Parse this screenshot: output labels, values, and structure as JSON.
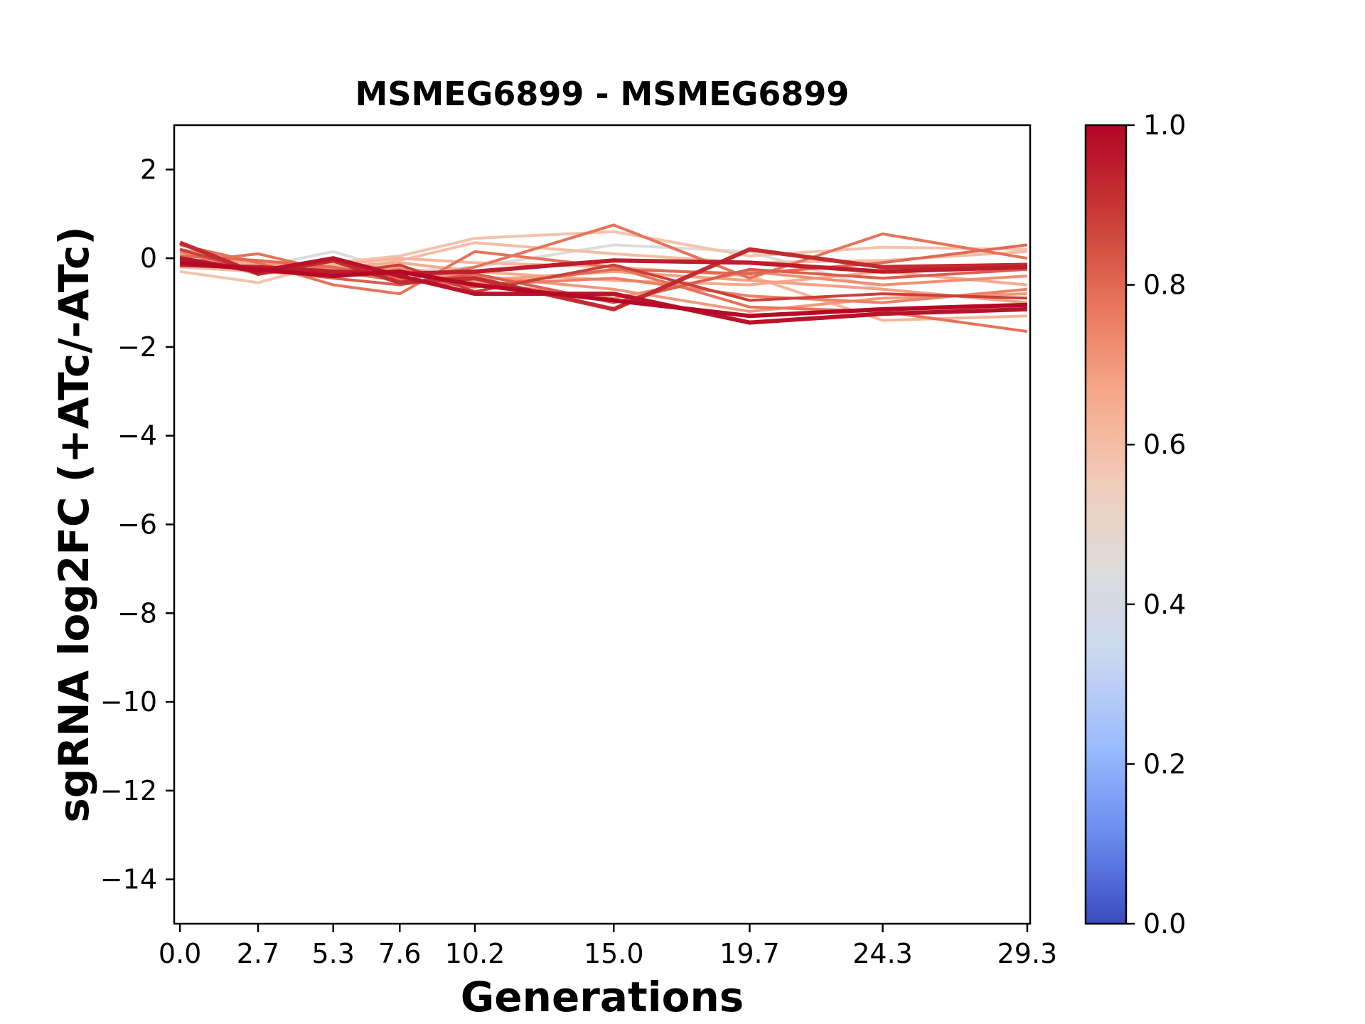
{
  "chart_data": {
    "type": "line",
    "title": "MSMEG6899 - MSMEG6899",
    "xlabel": "Generations",
    "ylabel": "sgRNA log2FC (+ATc/-ATc)",
    "x": [
      0.0,
      2.7,
      5.3,
      7.6,
      10.2,
      15.0,
      19.7,
      24.3,
      29.3
    ],
    "x_tick_labels": [
      "0.0",
      "2.7",
      "5.3",
      "7.6",
      "10.2",
      "15.0",
      "19.7",
      "24.3",
      "29.3"
    ],
    "xlim": [
      -0.2,
      29.4
    ],
    "ylim": [
      -15,
      3
    ],
    "y_ticks": [
      2,
      0,
      -2,
      -4,
      -6,
      -8,
      -10,
      -12,
      -14
    ],
    "y_tick_labels": [
      "2",
      "0",
      "−2",
      "−4",
      "−6",
      "−8",
      "−10",
      "−12",
      "−14"
    ],
    "grid": false,
    "colorbar": {
      "colormap": "coolwarm",
      "range": [
        0.0,
        1.0
      ],
      "ticks": [
        0.0,
        0.2,
        0.4,
        0.6,
        0.8,
        1.0
      ],
      "tick_labels": [
        "0.0",
        "0.2",
        "0.4",
        "0.6",
        "0.8",
        "1.0"
      ],
      "stops": [
        "#3b4cc0",
        "#6a8bef",
        "#9bbcff",
        "#c9d7f0",
        "#dddcdc",
        "#f2cbb7",
        "#f7a789",
        "#e7745b",
        "#c83b35",
        "#b40426"
      ]
    },
    "series": [
      {
        "color_value": 0.45,
        "values": [
          -0.1,
          -0.2,
          0.15,
          -0.3,
          -0.2,
          0.3,
          0.15,
          -0.7,
          -1.0
        ]
      },
      {
        "color_value": 0.58,
        "values": [
          -0.3,
          -0.55,
          -0.1,
          0.05,
          0.45,
          0.6,
          0.05,
          0.25,
          0.2
        ]
      },
      {
        "color_value": 0.6,
        "values": [
          -0.2,
          -0.3,
          -0.3,
          -0.05,
          0.35,
          0.1,
          -0.1,
          -0.05,
          0.15
        ]
      },
      {
        "color_value": 0.62,
        "values": [
          0.0,
          -0.35,
          -0.15,
          0.0,
          -0.1,
          -0.2,
          -0.4,
          -1.4,
          -1.3
        ]
      },
      {
        "color_value": 0.65,
        "values": [
          0.1,
          -0.15,
          -0.2,
          -0.1,
          -0.3,
          -0.5,
          -0.6,
          -0.3,
          -0.6
        ]
      },
      {
        "color_value": 0.68,
        "values": [
          -0.05,
          -0.2,
          -0.35,
          -0.2,
          -0.5,
          -0.3,
          -0.5,
          -0.7,
          -1.0
        ]
      },
      {
        "color_value": 0.7,
        "values": [
          0.2,
          -0.1,
          -0.25,
          -0.35,
          -0.4,
          -0.7,
          -1.2,
          -0.9,
          -0.8
        ]
      },
      {
        "color_value": 0.72,
        "values": [
          0.0,
          -0.25,
          -0.05,
          -0.3,
          -0.55,
          -0.9,
          -0.3,
          -0.6,
          -0.4
        ]
      },
      {
        "color_value": 0.75,
        "values": [
          0.15,
          -0.3,
          -0.4,
          -0.25,
          -0.6,
          -0.45,
          -0.85,
          -1.0,
          -0.7
        ]
      },
      {
        "color_value": 0.78,
        "values": [
          -0.1,
          0.1,
          -0.3,
          -0.5,
          -0.2,
          0.75,
          -0.45,
          0.55,
          0.0
        ]
      },
      {
        "color_value": 0.78,
        "values": [
          0.3,
          -0.1,
          -0.6,
          -0.8,
          0.15,
          -0.2,
          -1.1,
          -1.2,
          -1.65
        ]
      },
      {
        "color_value": 0.8,
        "values": [
          0.05,
          -0.05,
          -0.2,
          -0.45,
          -0.65,
          -0.25,
          -0.35,
          -0.1,
          0.3
        ]
      },
      {
        "color_value": 0.82,
        "values": [
          -0.15,
          -0.25,
          -0.45,
          -0.6,
          -0.35,
          -1.0,
          -0.25,
          -0.45,
          -0.25
        ]
      },
      {
        "color_value": 0.88,
        "values": [
          0.2,
          -0.3,
          -0.35,
          -0.15,
          -0.75,
          -0.15,
          -0.95,
          -0.8,
          -0.9
        ]
      },
      {
        "color_value": 0.92,
        "values": [
          0.35,
          -0.35,
          -0.05,
          -0.55,
          -0.45,
          -1.15,
          0.2,
          -0.2,
          -0.15
        ]
      },
      {
        "color_value": 0.95,
        "values": [
          -0.15,
          -0.2,
          -0.3,
          -0.35,
          -0.3,
          -0.05,
          -0.1,
          -0.3,
          -0.2
        ]
      },
      {
        "color_value": 0.97,
        "values": [
          0.0,
          -0.3,
          0.0,
          -0.4,
          -0.8,
          -0.8,
          -1.45,
          -1.25,
          -1.15
        ]
      },
      {
        "color_value": 0.99,
        "values": [
          -0.1,
          -0.25,
          -0.4,
          -0.3,
          -0.6,
          -0.95,
          -1.3,
          -1.15,
          -1.05
        ]
      }
    ]
  }
}
